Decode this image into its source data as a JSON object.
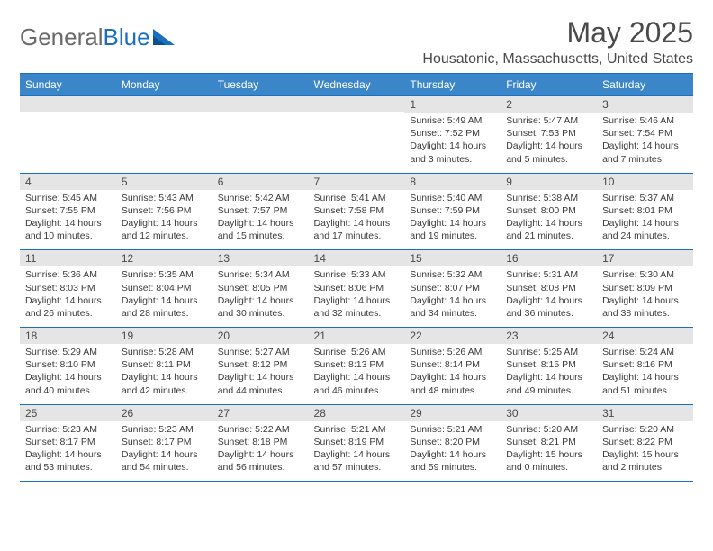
{
  "logo": {
    "part1": "General",
    "part2": "Blue"
  },
  "title": "May 2025",
  "location": "Housatonic, Massachusetts, United States",
  "colors": {
    "accent": "#3a86c8",
    "border": "#1a6fc0",
    "daynum_bg": "#e5e5e5",
    "text": "#4a4a4a"
  },
  "day_headers": [
    "Sunday",
    "Monday",
    "Tuesday",
    "Wednesday",
    "Thursday",
    "Friday",
    "Saturday"
  ],
  "weeks": [
    [
      {
        "n": "",
        "sr": "",
        "ss": "",
        "dl": ""
      },
      {
        "n": "",
        "sr": "",
        "ss": "",
        "dl": ""
      },
      {
        "n": "",
        "sr": "",
        "ss": "",
        "dl": ""
      },
      {
        "n": "",
        "sr": "",
        "ss": "",
        "dl": ""
      },
      {
        "n": "1",
        "sr": "Sunrise: 5:49 AM",
        "ss": "Sunset: 7:52 PM",
        "dl": "Daylight: 14 hours and 3 minutes."
      },
      {
        "n": "2",
        "sr": "Sunrise: 5:47 AM",
        "ss": "Sunset: 7:53 PM",
        "dl": "Daylight: 14 hours and 5 minutes."
      },
      {
        "n": "3",
        "sr": "Sunrise: 5:46 AM",
        "ss": "Sunset: 7:54 PM",
        "dl": "Daylight: 14 hours and 7 minutes."
      }
    ],
    [
      {
        "n": "4",
        "sr": "Sunrise: 5:45 AM",
        "ss": "Sunset: 7:55 PM",
        "dl": "Daylight: 14 hours and 10 minutes."
      },
      {
        "n": "5",
        "sr": "Sunrise: 5:43 AM",
        "ss": "Sunset: 7:56 PM",
        "dl": "Daylight: 14 hours and 12 minutes."
      },
      {
        "n": "6",
        "sr": "Sunrise: 5:42 AM",
        "ss": "Sunset: 7:57 PM",
        "dl": "Daylight: 14 hours and 15 minutes."
      },
      {
        "n": "7",
        "sr": "Sunrise: 5:41 AM",
        "ss": "Sunset: 7:58 PM",
        "dl": "Daylight: 14 hours and 17 minutes."
      },
      {
        "n": "8",
        "sr": "Sunrise: 5:40 AM",
        "ss": "Sunset: 7:59 PM",
        "dl": "Daylight: 14 hours and 19 minutes."
      },
      {
        "n": "9",
        "sr": "Sunrise: 5:38 AM",
        "ss": "Sunset: 8:00 PM",
        "dl": "Daylight: 14 hours and 21 minutes."
      },
      {
        "n": "10",
        "sr": "Sunrise: 5:37 AM",
        "ss": "Sunset: 8:01 PM",
        "dl": "Daylight: 14 hours and 24 minutes."
      }
    ],
    [
      {
        "n": "11",
        "sr": "Sunrise: 5:36 AM",
        "ss": "Sunset: 8:03 PM",
        "dl": "Daylight: 14 hours and 26 minutes."
      },
      {
        "n": "12",
        "sr": "Sunrise: 5:35 AM",
        "ss": "Sunset: 8:04 PM",
        "dl": "Daylight: 14 hours and 28 minutes."
      },
      {
        "n": "13",
        "sr": "Sunrise: 5:34 AM",
        "ss": "Sunset: 8:05 PM",
        "dl": "Daylight: 14 hours and 30 minutes."
      },
      {
        "n": "14",
        "sr": "Sunrise: 5:33 AM",
        "ss": "Sunset: 8:06 PM",
        "dl": "Daylight: 14 hours and 32 minutes."
      },
      {
        "n": "15",
        "sr": "Sunrise: 5:32 AM",
        "ss": "Sunset: 8:07 PM",
        "dl": "Daylight: 14 hours and 34 minutes."
      },
      {
        "n": "16",
        "sr": "Sunrise: 5:31 AM",
        "ss": "Sunset: 8:08 PM",
        "dl": "Daylight: 14 hours and 36 minutes."
      },
      {
        "n": "17",
        "sr": "Sunrise: 5:30 AM",
        "ss": "Sunset: 8:09 PM",
        "dl": "Daylight: 14 hours and 38 minutes."
      }
    ],
    [
      {
        "n": "18",
        "sr": "Sunrise: 5:29 AM",
        "ss": "Sunset: 8:10 PM",
        "dl": "Daylight: 14 hours and 40 minutes."
      },
      {
        "n": "19",
        "sr": "Sunrise: 5:28 AM",
        "ss": "Sunset: 8:11 PM",
        "dl": "Daylight: 14 hours and 42 minutes."
      },
      {
        "n": "20",
        "sr": "Sunrise: 5:27 AM",
        "ss": "Sunset: 8:12 PM",
        "dl": "Daylight: 14 hours and 44 minutes."
      },
      {
        "n": "21",
        "sr": "Sunrise: 5:26 AM",
        "ss": "Sunset: 8:13 PM",
        "dl": "Daylight: 14 hours and 46 minutes."
      },
      {
        "n": "22",
        "sr": "Sunrise: 5:26 AM",
        "ss": "Sunset: 8:14 PM",
        "dl": "Daylight: 14 hours and 48 minutes."
      },
      {
        "n": "23",
        "sr": "Sunrise: 5:25 AM",
        "ss": "Sunset: 8:15 PM",
        "dl": "Daylight: 14 hours and 49 minutes."
      },
      {
        "n": "24",
        "sr": "Sunrise: 5:24 AM",
        "ss": "Sunset: 8:16 PM",
        "dl": "Daylight: 14 hours and 51 minutes."
      }
    ],
    [
      {
        "n": "25",
        "sr": "Sunrise: 5:23 AM",
        "ss": "Sunset: 8:17 PM",
        "dl": "Daylight: 14 hours and 53 minutes."
      },
      {
        "n": "26",
        "sr": "Sunrise: 5:23 AM",
        "ss": "Sunset: 8:17 PM",
        "dl": "Daylight: 14 hours and 54 minutes."
      },
      {
        "n": "27",
        "sr": "Sunrise: 5:22 AM",
        "ss": "Sunset: 8:18 PM",
        "dl": "Daylight: 14 hours and 56 minutes."
      },
      {
        "n": "28",
        "sr": "Sunrise: 5:21 AM",
        "ss": "Sunset: 8:19 PM",
        "dl": "Daylight: 14 hours and 57 minutes."
      },
      {
        "n": "29",
        "sr": "Sunrise: 5:21 AM",
        "ss": "Sunset: 8:20 PM",
        "dl": "Daylight: 14 hours and 59 minutes."
      },
      {
        "n": "30",
        "sr": "Sunrise: 5:20 AM",
        "ss": "Sunset: 8:21 PM",
        "dl": "Daylight: 15 hours and 0 minutes."
      },
      {
        "n": "31",
        "sr": "Sunrise: 5:20 AM",
        "ss": "Sunset: 8:22 PM",
        "dl": "Daylight: 15 hours and 2 minutes."
      }
    ]
  ]
}
